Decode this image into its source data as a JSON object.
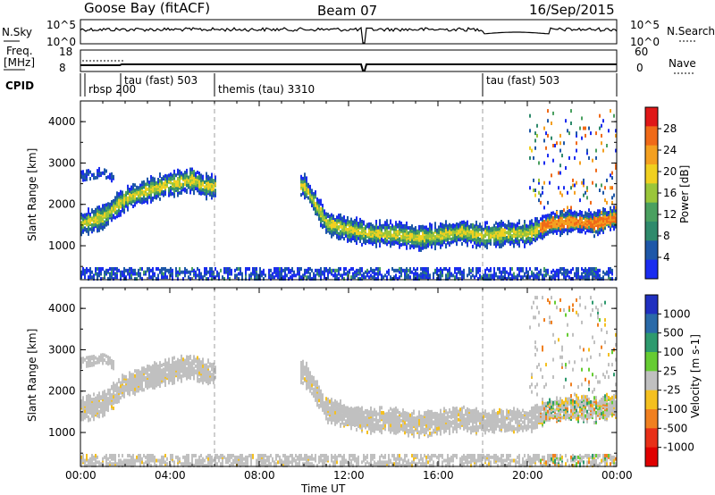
{
  "header": {
    "station": "Goose Bay (fitACF)",
    "beam": "Beam 07",
    "date": "16/Sep/2015"
  },
  "noise_panel": {
    "left_label": "N.Sky",
    "right_label": "N.Search",
    "left_ticks": [
      "10^5",
      "10^0"
    ],
    "right_ticks": [
      "10^5",
      "10^0"
    ]
  },
  "freq_panel": {
    "left_label_line1": "Freq.",
    "left_label_line2": "[MHz]",
    "left_ticks": [
      "18",
      "8"
    ],
    "right_label": "Nave",
    "right_ticks": [
      "60",
      "0"
    ]
  },
  "cpid_panel": {
    "label": "CPID",
    "segments": [
      {
        "name": "rbsp 200",
        "start": 0.2
      },
      {
        "name": "tau (fast) 503",
        "start": 1.8
      },
      {
        "name": "themis (tau) 3310",
        "start": 6.0
      },
      {
        "name": "tau (fast) 503",
        "start": 18.0
      }
    ]
  },
  "time_axis": {
    "label": "Time UT",
    "ticks": [
      "00:00",
      "04:00",
      "08:00",
      "12:00",
      "16:00",
      "20:00",
      "00:00"
    ]
  },
  "range_axis": {
    "label": "Slant Range [km]",
    "ticks": [
      "1000",
      "2000",
      "3000",
      "4000"
    ]
  },
  "power_colorbar": {
    "label": "Power [dB]",
    "ticks": [
      "4",
      "8",
      "12",
      "16",
      "20",
      "24",
      "28"
    ],
    "colors": [
      "#1a2cf0",
      "#1e57a8",
      "#2f8a6c",
      "#4aa060",
      "#9ac63a",
      "#f0d020",
      "#f4a020",
      "#f06a18",
      "#e01818"
    ]
  },
  "velocity_colorbar": {
    "label": "Velocity [m s-1]",
    "ticks": [
      "1000",
      "500",
      "100",
      "25",
      "-25",
      "-100",
      "-500",
      "-1000"
    ],
    "colors": [
      "#2030c0",
      "#2a6aa8",
      "#2e9a6e",
      "#66cc33",
      "#c0c0c0",
      "#f4c020",
      "#f08020",
      "#e83018",
      "#e00000"
    ]
  },
  "chart_data": {
    "type": "heatmap",
    "x_range_hours": [
      0,
      24
    ],
    "y_range_km": [
      180,
      4500
    ],
    "main_band_km": [
      [
        0,
        1550
      ],
      [
        1,
        1700
      ],
      [
        2,
        2150
      ],
      [
        3,
        2350
      ],
      [
        4,
        2500
      ],
      [
        5,
        2600
      ],
      [
        5.5,
        2450
      ],
      [
        10,
        2450
      ],
      [
        11,
        1550
      ],
      [
        12,
        1400
      ],
      [
        13,
        1300
      ],
      [
        14,
        1300
      ],
      [
        15,
        1200
      ],
      [
        16,
        1250
      ],
      [
        17,
        1350
      ],
      [
        18,
        1250
      ],
      [
        19,
        1300
      ],
      [
        20,
        1300
      ],
      [
        21,
        1550
      ],
      [
        22,
        1600
      ],
      [
        23,
        1550
      ],
      [
        24,
        1700
      ]
    ],
    "upper_band_km": [
      [
        0,
        2700
      ],
      [
        1,
        2800
      ],
      [
        1.5,
        2650
      ]
    ],
    "gap_hours": [
      6,
      9.8
    ]
  }
}
